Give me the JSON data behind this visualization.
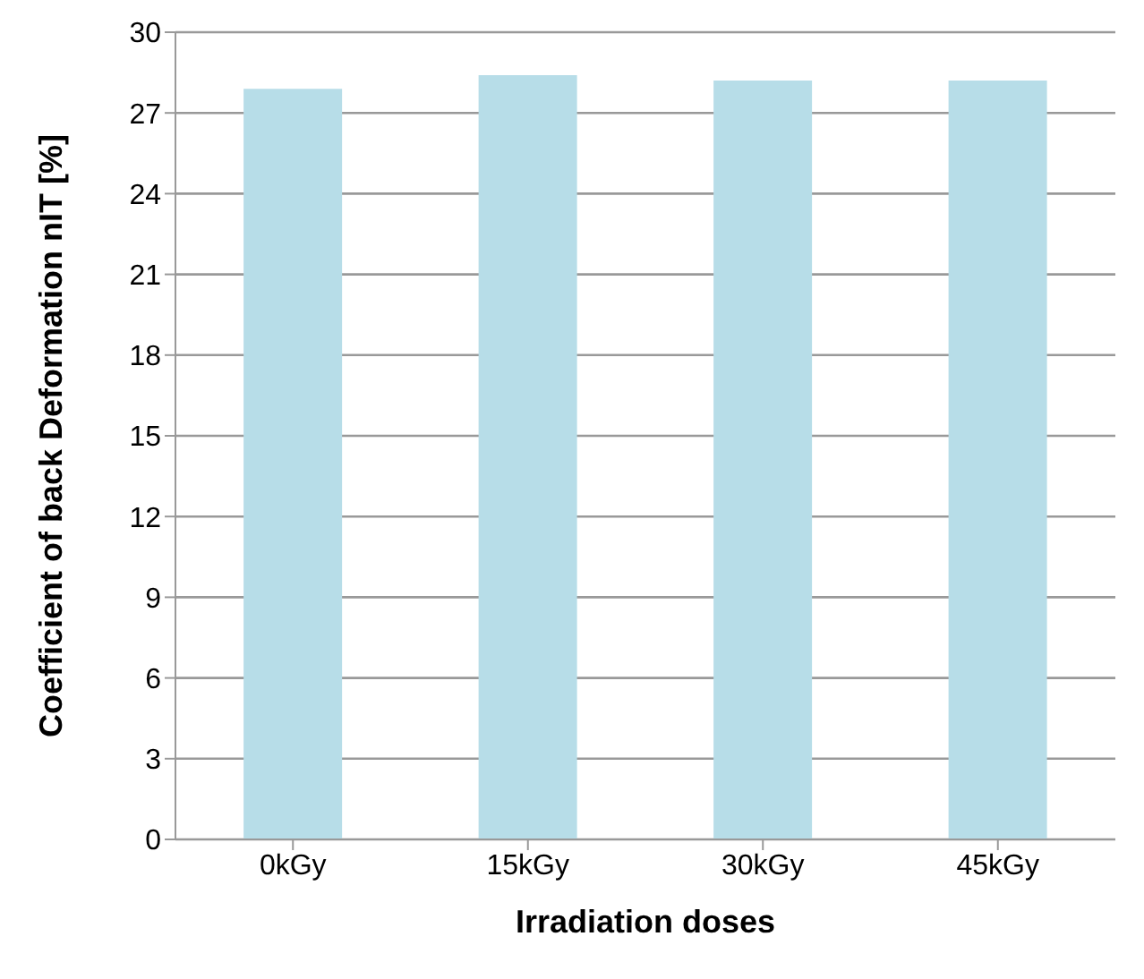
{
  "chart_data": {
    "type": "bar",
    "xlabel": "Irradiation doses",
    "ylabel": "Coefficient of back Deformation nIT [%]",
    "categories": [
      "0kGy",
      "15kGy",
      "30kGy",
      "45kGy"
    ],
    "values": [
      27.9,
      28.4,
      28.2,
      28.2
    ],
    "color": "#b7dde8",
    "ylim": [
      0,
      30
    ],
    "yticks": [
      0,
      3,
      6,
      9,
      12,
      15,
      18,
      21,
      24,
      27,
      30
    ],
    "grid": "y",
    "legend": false
  }
}
